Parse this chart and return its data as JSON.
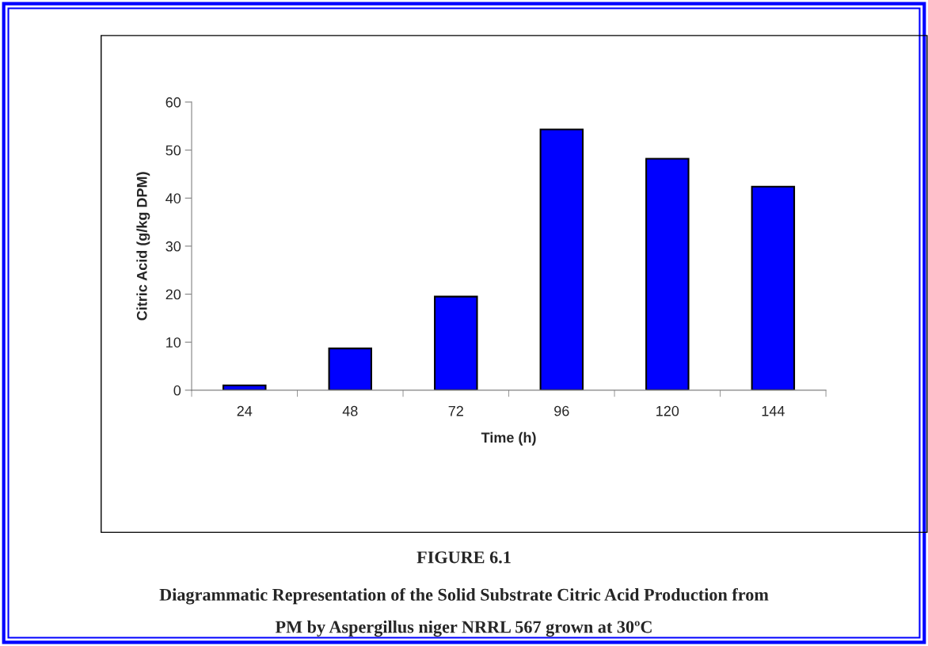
{
  "chart_data": {
    "type": "bar",
    "xlabel": "Time (h)",
    "ylabel": "Citric Acid (g/kg DPM)",
    "categories": [
      "24",
      "48",
      "72",
      "96",
      "120",
      "144"
    ],
    "values": [
      1.0,
      8.7,
      19.5,
      54.3,
      48.2,
      42.4
    ],
    "color": "#0000ff",
    "ylim": [
      0,
      60
    ],
    "yticks": [
      0,
      10,
      20,
      30,
      40,
      50,
      60
    ],
    "grid": false,
    "legend": false,
    "annotations": [
      "FIGURE 6.1",
      "Diagrammatic Representation of the Solid Substrate Citric Acid Production from",
      "PM by Aspergillus niger NRRL 567 grown at 30ºC"
    ]
  }
}
